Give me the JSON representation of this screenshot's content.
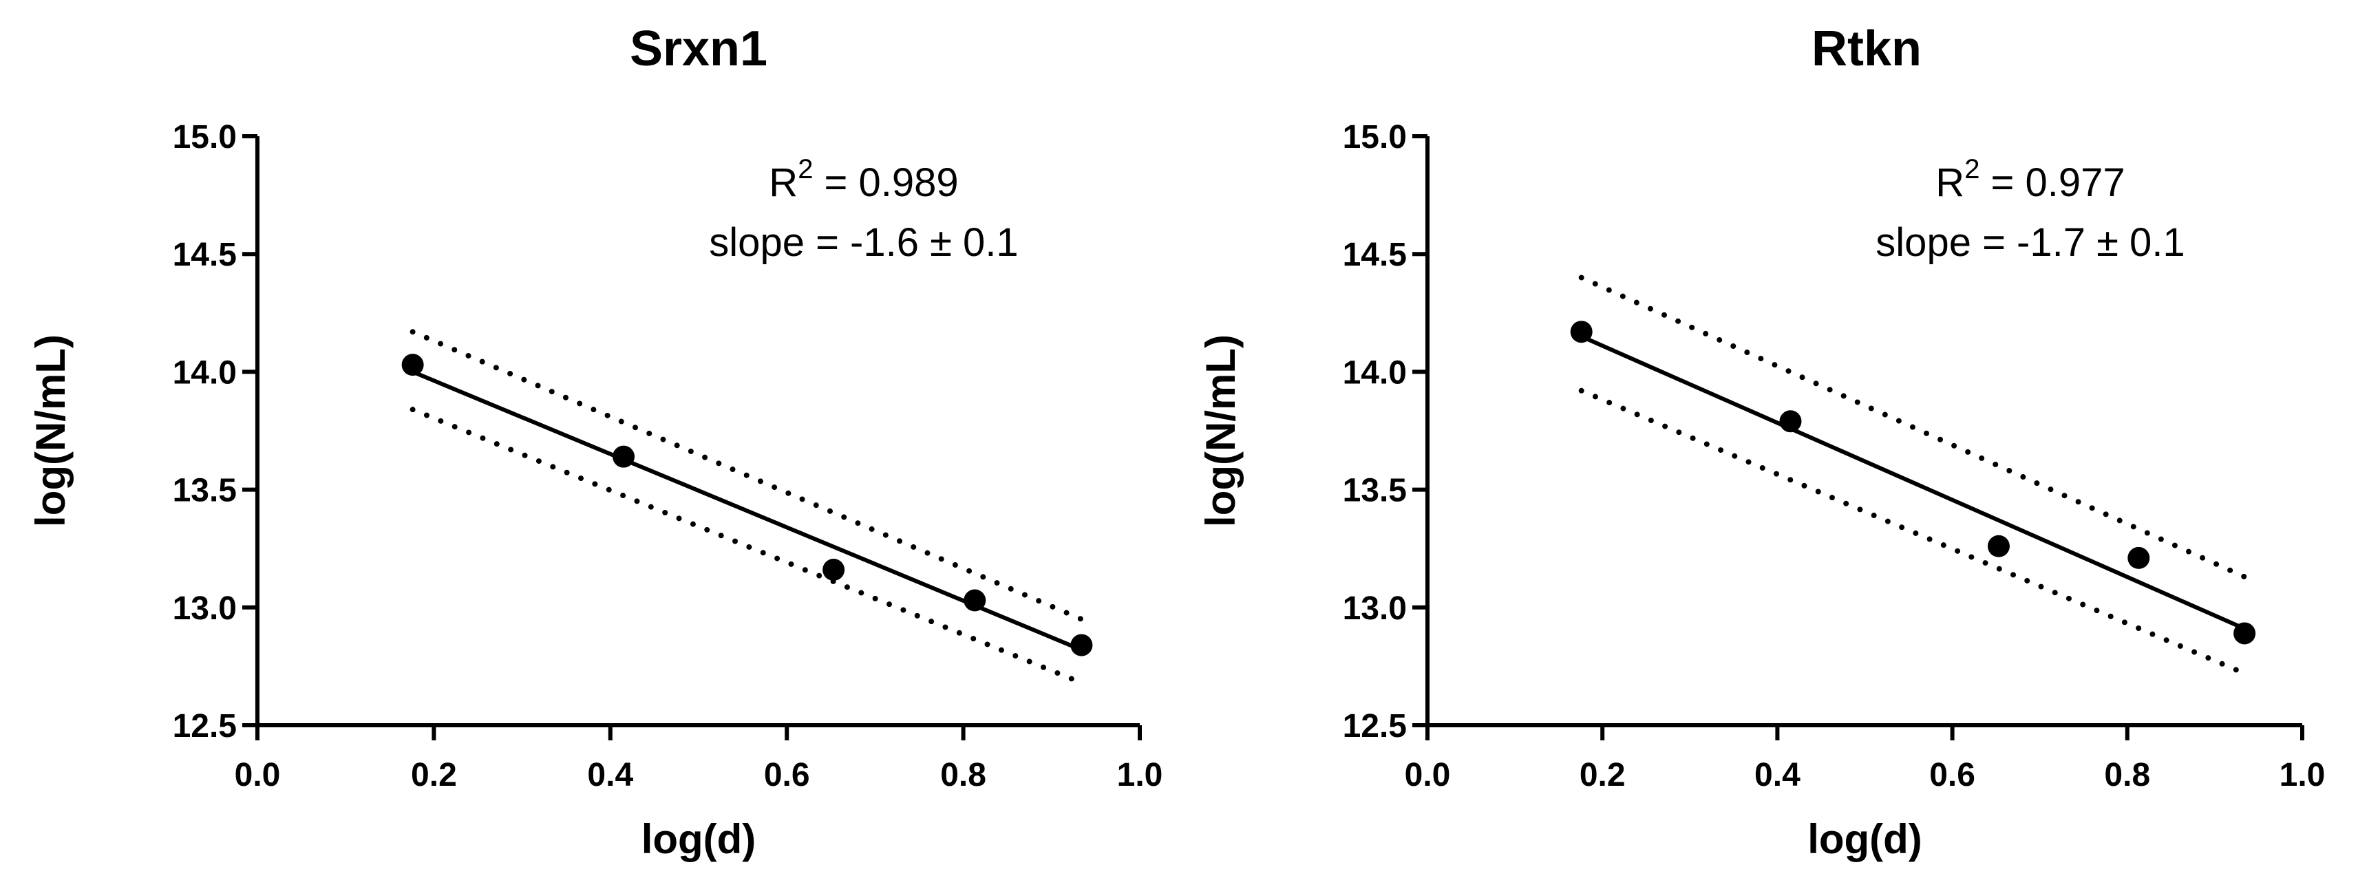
{
  "chart_data": [
    {
      "type": "scatter",
      "title": "Srxn1",
      "xlabel": "log(d)",
      "ylabel": "log(N/mL)",
      "xlim": [
        0.0,
        1.0
      ],
      "ylim": [
        12.5,
        15.0
      ],
      "xticks": [
        0.0,
        0.2,
        0.4,
        0.6,
        0.8,
        1.0
      ],
      "xtick_labels": [
        "0.0",
        "0.2",
        "0.4",
        "0.6",
        "0.8",
        "1.0"
      ],
      "yticks": [
        12.5,
        13.0,
        13.5,
        14.0,
        14.5,
        15.0
      ],
      "ytick_labels": [
        "12.5",
        "13.0",
        "13.5",
        "14.0",
        "14.5",
        "15.0"
      ],
      "points": {
        "x": [
          0.176,
          0.415,
          0.653,
          0.813,
          0.934
        ],
        "y": [
          14.03,
          13.64,
          13.16,
          13.03,
          12.84
        ]
      },
      "fit": {
        "x": [
          0.176,
          0.934
        ],
        "y": [
          14.0,
          12.82
        ]
      },
      "ci_upper": {
        "x": [
          0.176,
          0.934
        ],
        "y": [
          14.17,
          12.95
        ]
      },
      "ci_lower": {
        "x": [
          0.176,
          0.934
        ],
        "y": [
          13.84,
          12.68
        ]
      },
      "annotation": {
        "r2_label": "R",
        "r2_sup": "2",
        "r2_value": " = 0.989",
        "slope": "slope = -1.6 ± 0.1"
      }
    },
    {
      "type": "scatter",
      "title": "Rtkn",
      "xlabel": "log(d)",
      "ylabel": "log(N/mL)",
      "xlim": [
        0.0,
        1.0
      ],
      "ylim": [
        12.5,
        15.0
      ],
      "xticks": [
        0.0,
        0.2,
        0.4,
        0.6,
        0.8,
        1.0
      ],
      "xtick_labels": [
        "0.0",
        "0.2",
        "0.4",
        "0.6",
        "0.8",
        "1.0"
      ],
      "yticks": [
        12.5,
        13.0,
        13.5,
        14.0,
        14.5,
        15.0
      ],
      "ytick_labels": [
        "12.5",
        "13.0",
        "13.5",
        "14.0",
        "14.5",
        "15.0"
      ],
      "points": {
        "x": [
          0.176,
          0.415,
          0.653,
          0.813,
          0.934
        ],
        "y": [
          14.17,
          13.79,
          13.26,
          13.21,
          12.89
        ]
      },
      "fit": {
        "x": [
          0.176,
          0.934
        ],
        "y": [
          14.15,
          12.91
        ]
      },
      "ci_upper": {
        "x": [
          0.176,
          0.934
        ],
        "y": [
          14.4,
          13.13
        ]
      },
      "ci_lower": {
        "x": [
          0.176,
          0.934
        ],
        "y": [
          13.92,
          12.72
        ]
      },
      "annotation": {
        "r2_label": "R",
        "r2_sup": "2",
        "r2_value": " = 0.977",
        "slope": "slope = -1.7 ± 0.1"
      }
    }
  ]
}
